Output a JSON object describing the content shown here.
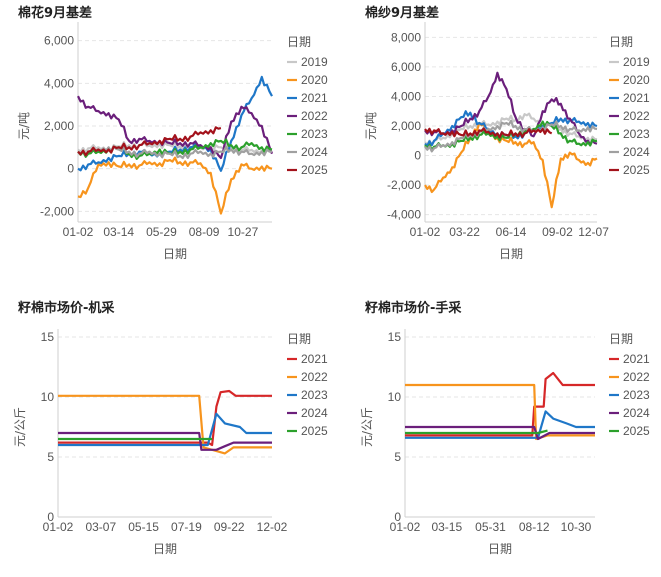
{
  "chart_data": [
    {
      "type": "line",
      "title": "棉花9月基差",
      "xlabel": "日期",
      "ylabel": "元/吨",
      "ylim": [
        -2500,
        6500
      ],
      "yticks": [
        -2000,
        0,
        2000,
        4000,
        6000
      ],
      "ytick_labels": [
        "-2,000",
        "0",
        "2,000",
        "4,000",
        "6,000"
      ],
      "xticks": [
        "01-02",
        "03-14",
        "05-29",
        "08-09",
        "10-27"
      ],
      "legend_title": "日期",
      "series": [
        {
          "name": "2019",
          "color": "#c8c8c8",
          "values": [
            900,
            950,
            1000,
            980,
            1050,
            1100,
            1120,
            1080,
            1150,
            1100,
            1050,
            1000,
            980,
            1020,
            1000,
            950,
            900,
            880,
            850,
            820
          ]
        },
        {
          "name": "2020",
          "color": "#f7941d",
          "values": [
            -1300,
            -900,
            200,
            300,
            100,
            200,
            150,
            300,
            250,
            400,
            300,
            300,
            250,
            -200,
            -2100,
            -500,
            200,
            0,
            100,
            0
          ]
        },
        {
          "name": "2021",
          "color": "#1f77c8",
          "values": [
            0,
            200,
            300,
            500,
            600,
            700,
            800,
            700,
            700,
            800,
            900,
            1000,
            1100,
            900,
            -100,
            1300,
            2500,
            3300,
            4300,
            3400
          ]
        },
        {
          "name": "2022",
          "color": "#6b1f7b",
          "values": [
            3400,
            2900,
            2700,
            2600,
            2300,
            1300,
            1400,
            1300,
            1300,
            1200,
            1200,
            1200,
            1100,
            1000,
            500,
            2200,
            2900,
            2600,
            2000,
            700
          ]
        },
        {
          "name": "2023",
          "color": "#2ca02c",
          "values": [
            800,
            700,
            800,
            900,
            1000,
            700,
            600,
            700,
            900,
            700,
            800,
            900,
            1000,
            1200,
            1300,
            1100,
            1000,
            1200,
            1000,
            900
          ]
        },
        {
          "name": "2024",
          "color": "#a0a0a0",
          "values": [
            800,
            800,
            900,
            1000,
            900,
            800,
            700,
            800,
            700,
            700,
            600,
            700,
            800,
            700,
            800,
            900,
            800,
            700,
            800,
            800
          ]
        },
        {
          "name": "2025",
          "color": "#a3121b",
          "values": [
            800,
            800,
            900,
            900,
            1000,
            1000,
            1100,
            1200,
            1300,
            1400,
            1400,
            1500,
            1700,
            1800,
            1900
          ]
        }
      ]
    },
    {
      "type": "line",
      "title": "棉纱9月基差",
      "xlabel": "日期",
      "ylabel": "元/吨",
      "ylim": [
        -4500,
        8500
      ],
      "yticks": [
        -4000,
        -2000,
        0,
        2000,
        4000,
        6000,
        8000
      ],
      "ytick_labels": [
        "-4,000",
        "-2,000",
        "0",
        "2,000",
        "4,000",
        "6,000",
        "8,000"
      ],
      "xticks": [
        "01-02",
        "03-22",
        "06-14",
        "09-02",
        "12-07"
      ],
      "legend_title": "日期",
      "series": [
        {
          "name": "2019",
          "color": "#c8c8c8",
          "values": [
            900,
            1000,
            1200,
            1500,
            1800,
            2000,
            2200,
            2100,
            2300,
            2500,
            2400,
            2800,
            2500,
            2200,
            2000,
            1800,
            1500,
            1300,
            1200,
            1100
          ]
        },
        {
          "name": "2020",
          "color": "#f7941d",
          "values": [
            -2000,
            -2300,
            -1500,
            -800,
            200,
            1200,
            2200,
            1600,
            1200,
            1000,
            900,
            800,
            900,
            -300,
            -3500,
            -200,
            200,
            -300,
            -500,
            -200
          ]
        },
        {
          "name": "2021",
          "color": "#1f77c8",
          "values": [
            800,
            1000,
            1500,
            2000,
            2600,
            2900,
            2200,
            1800,
            1500,
            1400,
            1300,
            1500,
            1800,
            2000,
            2200,
            2500,
            2400,
            2300,
            2200,
            2000
          ]
        },
        {
          "name": "2022",
          "color": "#6b1f7b",
          "values": [
            1700,
            1600,
            1500,
            1700,
            2000,
            2500,
            3000,
            4000,
            5600,
            4500,
            2600,
            1800,
            1300,
            3000,
            3800,
            3500,
            2500,
            1500,
            1000,
            800
          ]
        },
        {
          "name": "2023",
          "color": "#2ca02c",
          "values": [
            700,
            600,
            700,
            800,
            1000,
            1200,
            1400,
            1500,
            1300,
            1200,
            1500,
            1600,
            1800,
            2300,
            2000,
            1500,
            1000,
            800,
            900,
            1000
          ]
        },
        {
          "name": "2024",
          "color": "#a0a0a0",
          "values": [
            600,
            500,
            700,
            900,
            1200,
            1400,
            1600,
            1800,
            2000,
            2200,
            2000,
            1800,
            1700,
            1900,
            2100,
            2000,
            1800,
            1700,
            1900,
            1800
          ]
        },
        {
          "name": "2025",
          "color": "#a3121b",
          "values": [
            1800,
            1700,
            1500,
            1600,
            1400,
            1500,
            1700,
            1600,
            1500,
            1400,
            1500,
            1500,
            1700,
            1800,
            1500
          ]
        }
      ]
    },
    {
      "type": "line",
      "title": "籽棉市场价-机采",
      "xlabel": "日期",
      "ylabel": "元/公斤",
      "ylim": [
        0,
        15
      ],
      "yticks": [
        0,
        5,
        10,
        15
      ],
      "ytick_labels": [
        "0",
        "5",
        "10",
        "15"
      ],
      "xticks": [
        "01-02",
        "03-07",
        "05-15",
        "07-19",
        "09-22",
        "12-02"
      ],
      "legend_title": "日期",
      "series": [
        {
          "name": "2021",
          "color": "#d62728",
          "points": [
            [
              0,
              6.2
            ],
            [
              0.7,
              6.2
            ],
            [
              0.72,
              6.0
            ],
            [
              0.74,
              9.2
            ],
            [
              0.76,
              10.4
            ],
            [
              0.8,
              10.5
            ],
            [
              0.83,
              10.1
            ],
            [
              1,
              10.1
            ]
          ]
        },
        {
          "name": "2022",
          "color": "#f7941d",
          "points": [
            [
              0,
              10.1
            ],
            [
              0.66,
              10.1
            ],
            [
              0.68,
              5.8
            ],
            [
              0.72,
              5.6
            ],
            [
              0.78,
              5.3
            ],
            [
              0.82,
              5.8
            ],
            [
              1,
              5.8
            ]
          ]
        },
        {
          "name": "2023",
          "color": "#1f77c8",
          "points": [
            [
              0,
              6.0
            ],
            [
              0.7,
              6.0
            ],
            [
              0.74,
              8.6
            ],
            [
              0.78,
              7.8
            ],
            [
              0.85,
              7.5
            ],
            [
              0.88,
              7.0
            ],
            [
              1,
              7.0
            ]
          ]
        },
        {
          "name": "2024",
          "color": "#6b1f7b",
          "points": [
            [
              0,
              7.0
            ],
            [
              0.66,
              7.0
            ],
            [
              0.67,
              5.6
            ],
            [
              0.74,
              5.6
            ],
            [
              0.78,
              5.9
            ],
            [
              0.82,
              6.2
            ],
            [
              1,
              6.2
            ]
          ]
        },
        {
          "name": "2025",
          "color": "#2ca02c",
          "points": [
            [
              0,
              6.5
            ],
            [
              0.72,
              6.5
            ]
          ]
        }
      ]
    },
    {
      "type": "line",
      "title": "籽棉市场价-手采",
      "xlabel": "日期",
      "ylabel": "元/公斤",
      "ylim": [
        0,
        15
      ],
      "yticks": [
        0,
        5,
        10,
        15
      ],
      "ytick_labels": [
        "0",
        "5",
        "10",
        "15"
      ],
      "xticks": [
        "01-02",
        "03-15",
        "05-31",
        "08-12",
        "10-30"
      ],
      "legend_title": "日期",
      "series": [
        {
          "name": "2021",
          "color": "#d62728",
          "points": [
            [
              0,
              6.8
            ],
            [
              0.67,
              6.8
            ],
            [
              0.68,
              9.2
            ],
            [
              0.73,
              9.2
            ],
            [
              0.74,
              11.5
            ],
            [
              0.78,
              12.0
            ],
            [
              0.83,
              11.0
            ],
            [
              1,
              11.0
            ]
          ]
        },
        {
          "name": "2022",
          "color": "#f7941d",
          "points": [
            [
              0,
              11.0
            ],
            [
              0.68,
              11.0
            ],
            [
              0.69,
              6.5
            ],
            [
              0.75,
              6.8
            ],
            [
              0.82,
              6.8
            ],
            [
              1,
              6.8
            ]
          ]
        },
        {
          "name": "2023",
          "color": "#1f77c8",
          "points": [
            [
              0,
              6.6
            ],
            [
              0.7,
              6.6
            ],
            [
              0.74,
              8.8
            ],
            [
              0.78,
              8.2
            ],
            [
              0.85,
              7.8
            ],
            [
              0.9,
              7.5
            ],
            [
              1,
              7.5
            ]
          ]
        },
        {
          "name": "2024",
          "color": "#6b1f7b",
          "points": [
            [
              0,
              7.5
            ],
            [
              0.68,
              7.5
            ],
            [
              0.7,
              6.5
            ],
            [
              0.76,
              7.0
            ],
            [
              0.82,
              7.0
            ],
            [
              1,
              7.0
            ]
          ]
        },
        {
          "name": "2025",
          "color": "#2ca02c",
          "points": [
            [
              0,
              7.0
            ],
            [
              0.7,
              7.0
            ],
            [
              0.75,
              7.2
            ]
          ]
        }
      ]
    }
  ]
}
